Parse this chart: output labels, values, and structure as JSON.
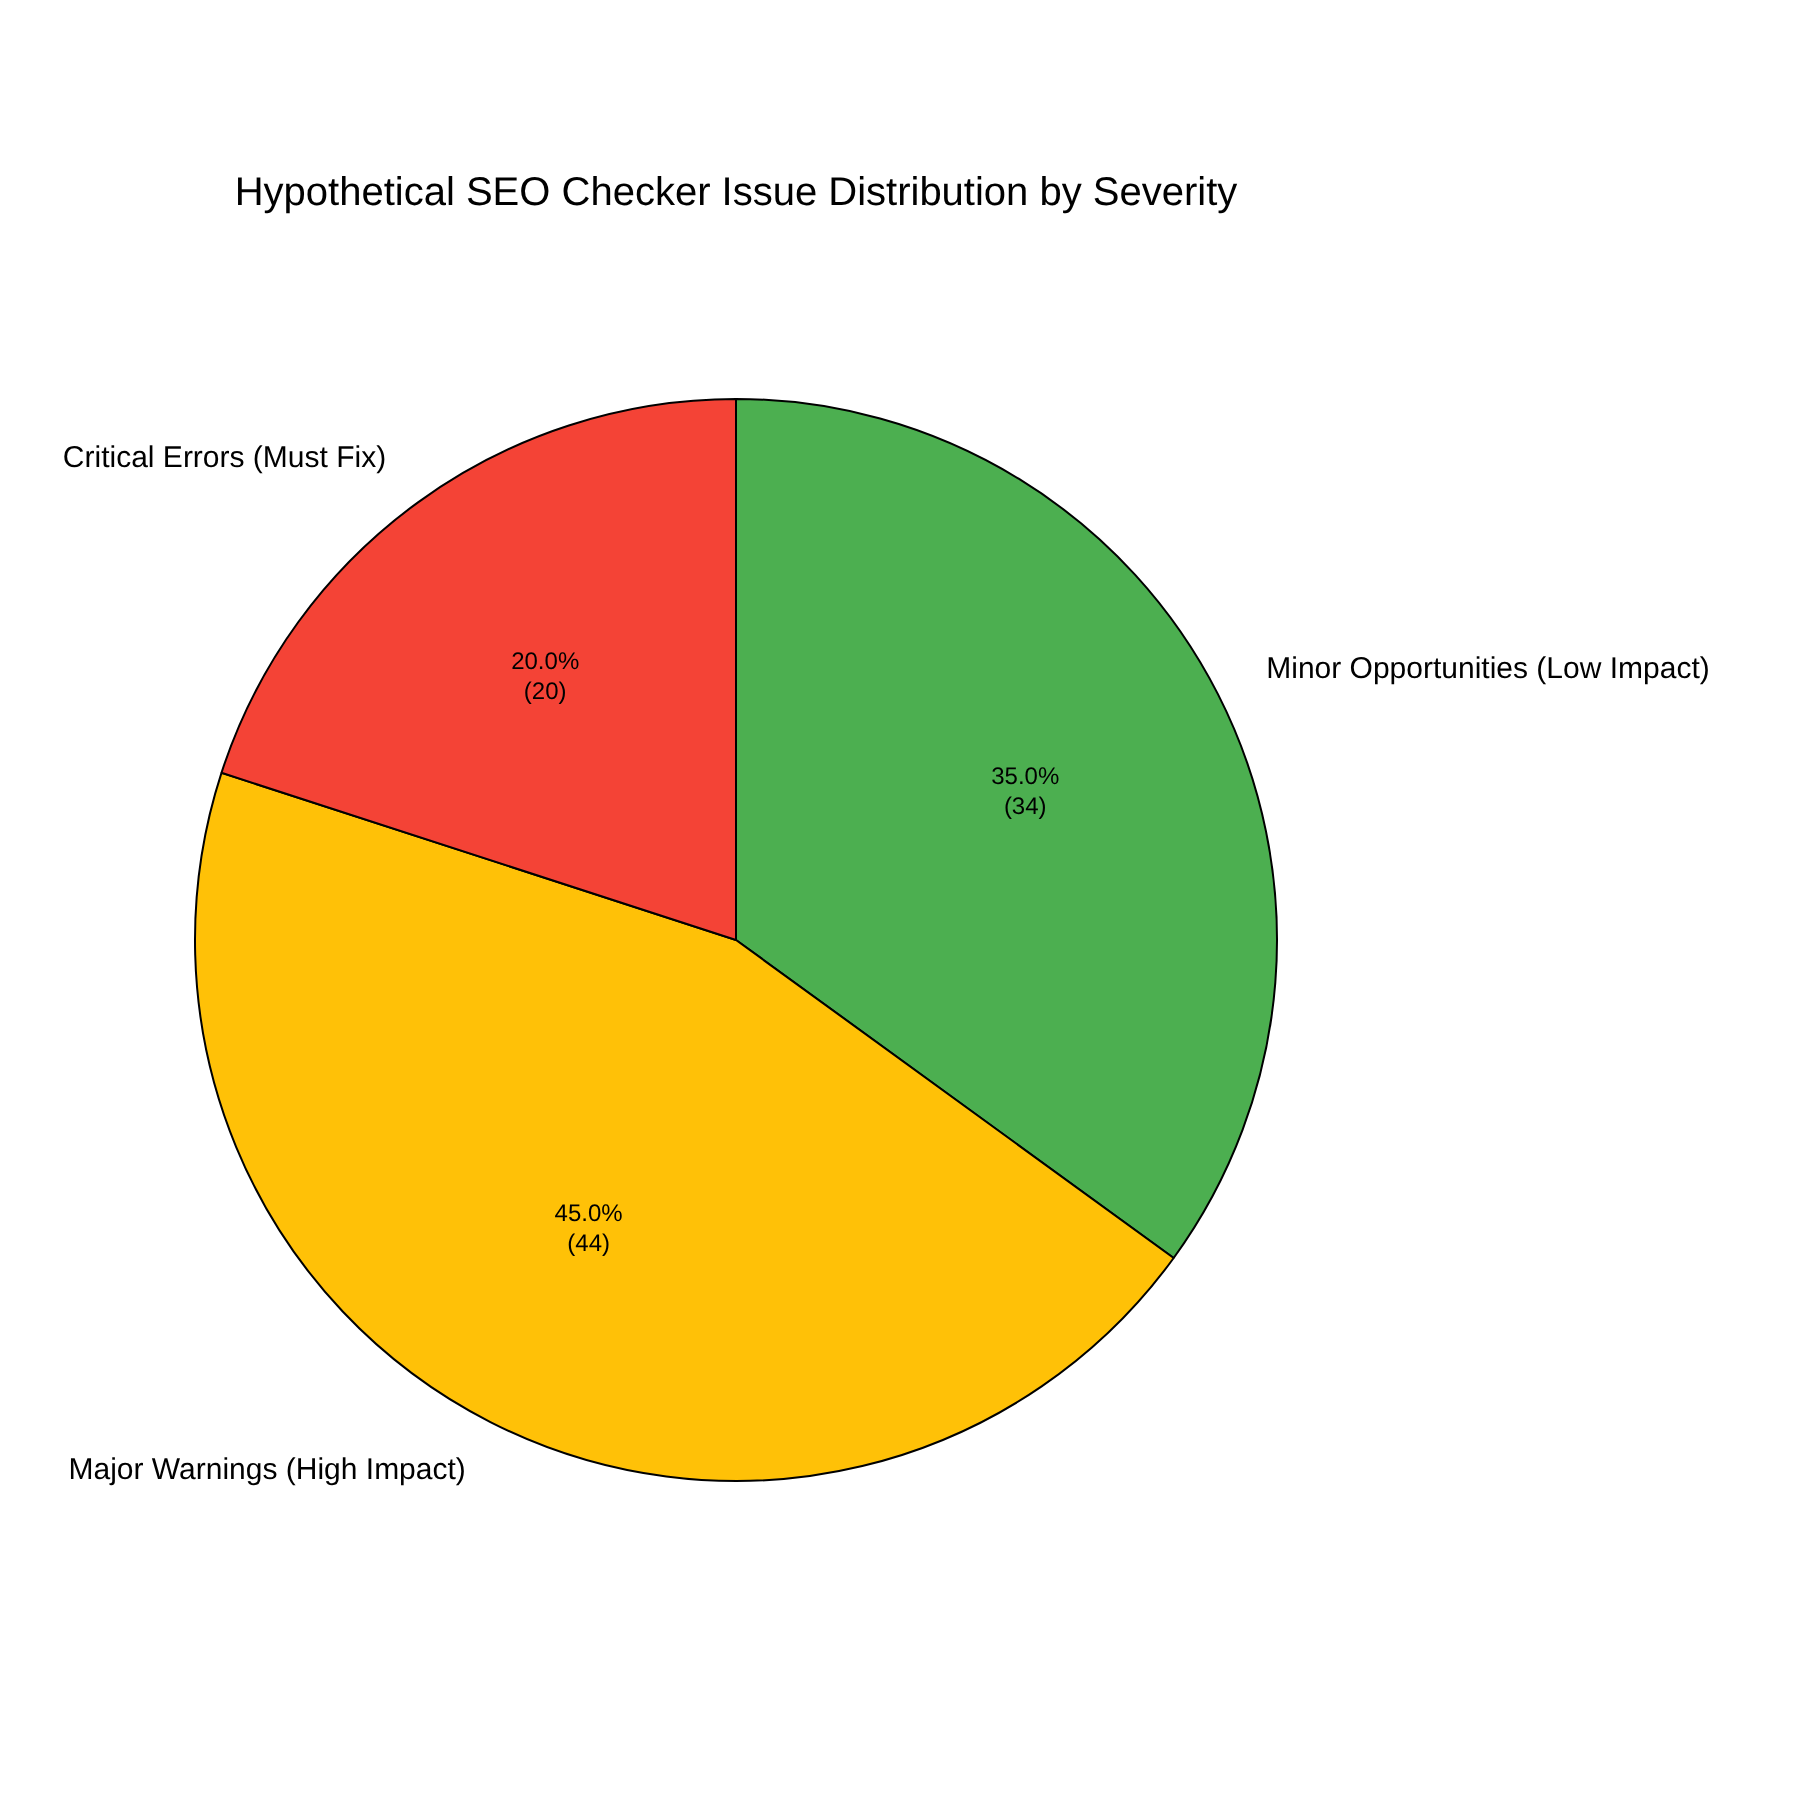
{
  "chart_data": {
    "type": "pie",
    "title": "Hypothetical SEO Checker Issue Distribution by Severity",
    "categories": [
      "Minor Opportunities (Low Impact)",
      "Major Warnings (High Impact)",
      "Critical Errors (Must Fix)"
    ],
    "values": [
      35,
      45,
      20
    ],
    "colors": [
      "#4caf50",
      "#ffc107",
      "#f44336"
    ],
    "value_labels": [
      "35.0%\n(34)",
      "45.0%\n(44)",
      "20.0%\n(20)"
    ],
    "legend": false
  }
}
